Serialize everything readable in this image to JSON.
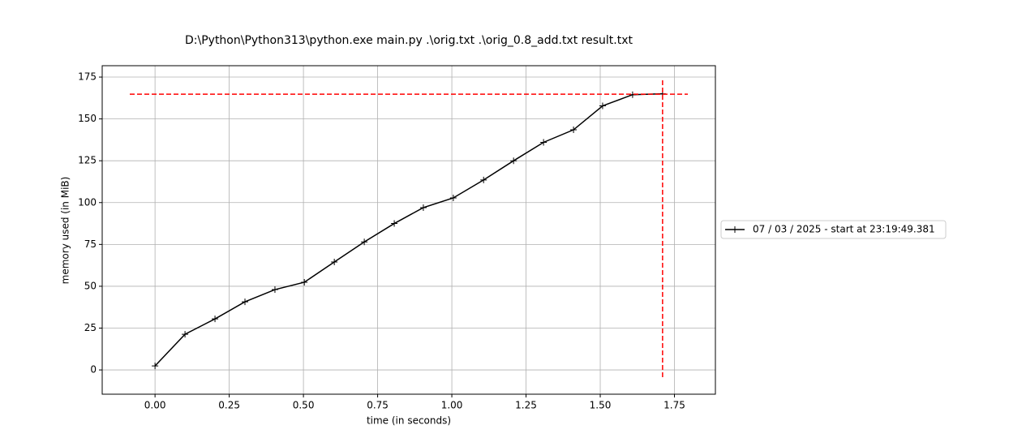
{
  "chart_data": {
    "type": "line",
    "title": "D:\\Python\\Python313\\python.exe main.py .\\orig.txt .\\orig_0.8_add.txt result.txt",
    "x_label": "time (in seconds)",
    "y_label": "memory used (in MiB)",
    "x": [
      0,
      0.101,
      0.202,
      0.303,
      0.404,
      0.503,
      0.604,
      0.705,
      0.806,
      0.904,
      1.005,
      1.107,
      1.208,
      1.309,
      1.41,
      1.508,
      1.609,
      1.71
    ],
    "series": [
      {
        "name": "07 / 03 / 2025 - start at 23:19:49.381",
        "color": "#000000",
        "values": [
          2.4,
          21.3,
          30.5,
          40.7,
          48,
          52.4,
          64.5,
          76.5,
          87.5,
          97,
          102.8,
          113.5,
          125,
          136,
          143.5,
          157.8,
          164.5,
          165
        ]
      }
    ],
    "max_marker": {
      "x": 1.71,
      "y": 164.8,
      "color": "#ff0000"
    },
    "xlim": [
      -0.178,
      1.888
    ],
    "ylim": [
      -14.5,
      181.8
    ],
    "xticks": [
      {
        "value": 0,
        "label": "0.00"
      },
      {
        "value": 0.25,
        "label": "0.25"
      },
      {
        "value": 0.5,
        "label": "0.50"
      },
      {
        "value": 0.75,
        "label": "0.75"
      },
      {
        "value": 1,
        "label": "1.00"
      },
      {
        "value": 1.25,
        "label": "1.25"
      },
      {
        "value": 1.5,
        "label": "1.50"
      },
      {
        "value": 1.75,
        "label": "1.75"
      }
    ],
    "yticks": [
      0,
      25,
      50,
      75,
      100,
      125,
      150,
      175
    ],
    "grid": true,
    "legend": "outside-right"
  }
}
